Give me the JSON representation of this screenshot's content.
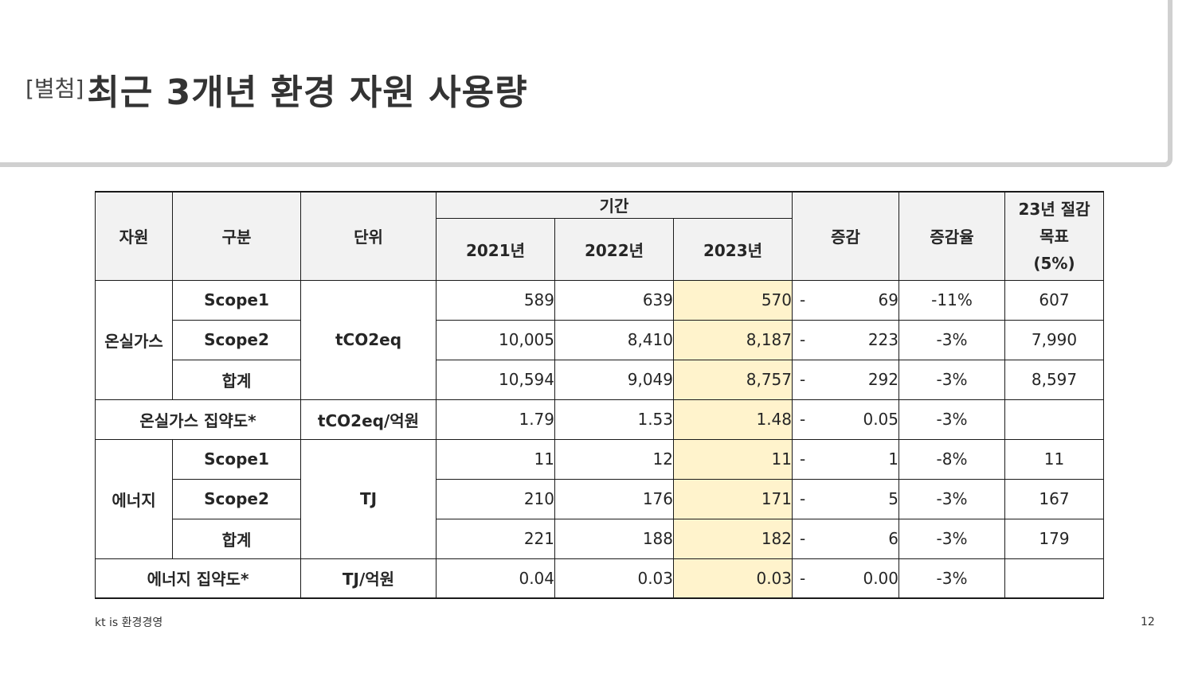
{
  "title": {
    "prefix": "[별첨]",
    "main": "최근 3개년 환경 자원 사용량"
  },
  "table": {
    "headers": {
      "resource": "자원",
      "category": "구분",
      "unit": "단위",
      "period": "기간",
      "y2021": "2021년",
      "y2022": "2022년",
      "y2023": "2023년",
      "change": "증감",
      "change_rate": "증감율",
      "target_line1": "23년 절감",
      "target_line2": "목표",
      "target_line3": "(5%)"
    },
    "ghg": {
      "resource": "온실가스",
      "unit": "tCO2eq",
      "rows": [
        {
          "category": "Scope1",
          "y2021": "589",
          "y2022": "639",
          "y2023": "570",
          "sign": "-",
          "change": "69",
          "rate": "-11%",
          "target": "607"
        },
        {
          "category": "Scope2",
          "y2021": "10,005",
          "y2022": "8,410",
          "y2023": "8,187",
          "sign": "-",
          "change": "223",
          "rate": "-3%",
          "target": "7,990"
        },
        {
          "category": "합계",
          "y2021": "10,594",
          "y2022": "9,049",
          "y2023": "8,757",
          "sign": "-",
          "change": "292",
          "rate": "-3%",
          "target": "8,597"
        }
      ]
    },
    "ghg_intensity": {
      "label": "온실가스 집약도*",
      "unit": "tCO2eq/억원",
      "y2021": "1.79",
      "y2022": "1.53",
      "y2023": "1.48",
      "sign": "-",
      "change": "0.05",
      "rate": "-3%",
      "target": ""
    },
    "energy": {
      "resource": "에너지",
      "unit": "TJ",
      "rows": [
        {
          "category": "Scope1",
          "y2021": "11",
          "y2022": "12",
          "y2023": "11",
          "sign": "-",
          "change": "1",
          "rate": "-8%",
          "target": "11"
        },
        {
          "category": "Scope2",
          "y2021": "210",
          "y2022": "176",
          "y2023": "171",
          "sign": "-",
          "change": "5",
          "rate": "-3%",
          "target": "167"
        },
        {
          "category": "합계",
          "y2021": "221",
          "y2022": "188",
          "y2023": "182",
          "sign": "-",
          "change": "6",
          "rate": "-3%",
          "target": "179"
        }
      ]
    },
    "energy_intensity": {
      "label": "에너지 집약도*",
      "unit": "TJ/억원",
      "y2021": "0.04",
      "y2022": "0.03",
      "y2023": "0.03",
      "sign": "-",
      "change": "0.00",
      "rate": "-3%",
      "target": ""
    }
  },
  "footer": {
    "left": "kt is 환경경영",
    "page": "12"
  },
  "colors": {
    "highlight": "#fff3cc",
    "header_bg": "#f2f2f2",
    "panel_border": "#d0d0d0"
  }
}
